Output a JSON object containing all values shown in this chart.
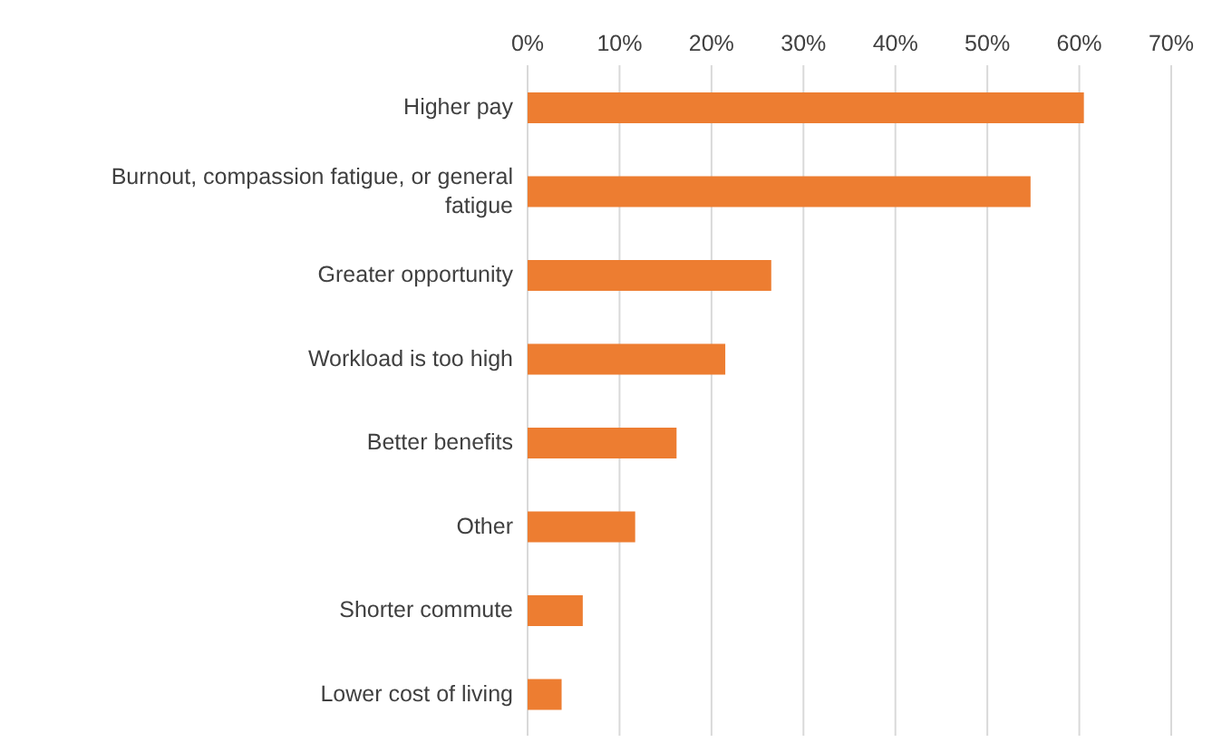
{
  "chart_data": {
    "type": "bar",
    "orientation": "horizontal",
    "categories": [
      "Higher pay",
      "Burnout, compassion fatigue, or general fatigue",
      "Greater opportunity",
      "Workload is too high",
      "Better benefits",
      "Other",
      "Shorter commute",
      "Lower cost of living"
    ],
    "values": [
      60.5,
      54.7,
      26.5,
      21.5,
      16.2,
      11.7,
      6.0,
      3.7
    ],
    "color": "#ed7d31",
    "xlim": [
      0,
      70
    ],
    "xticks": [
      {
        "value": 0,
        "label": "0%"
      },
      {
        "value": 10,
        "label": "10%"
      },
      {
        "value": 20,
        "label": "20%"
      },
      {
        "value": 30,
        "label": "30%"
      },
      {
        "value": 40,
        "label": "40%"
      },
      {
        "value": 50,
        "label": "50%"
      },
      {
        "value": 60,
        "label": "60%"
      },
      {
        "value": 70,
        "label": "70%"
      }
    ],
    "grid": "x"
  }
}
